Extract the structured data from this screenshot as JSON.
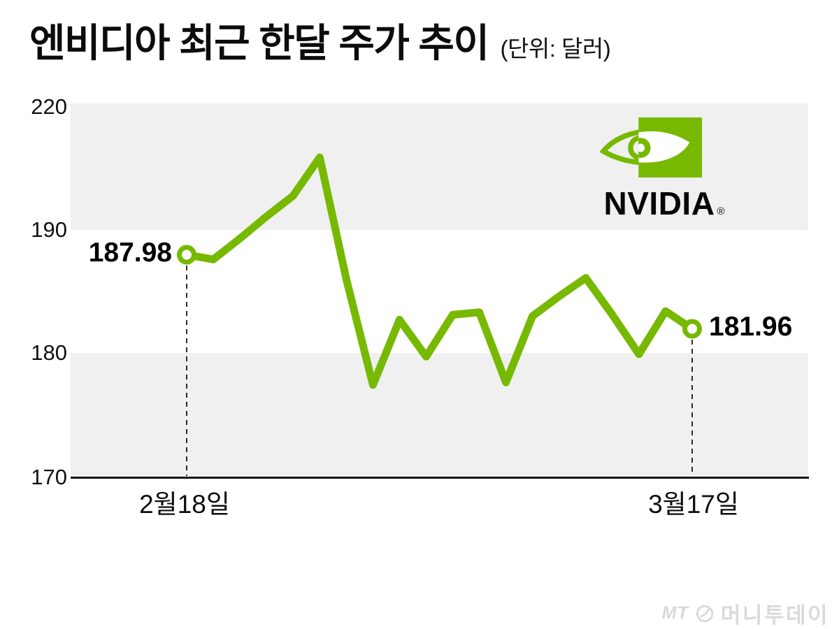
{
  "title": {
    "text": "엔비디아 최근 한달 주가 추이",
    "unit": "(단위: 달러)"
  },
  "chart_data": {
    "type": "line",
    "title": "엔비디아 최근 한달 주가 추이",
    "unit_label": "(단위: 달러)",
    "series": [
      {
        "name": "NVIDIA",
        "color": "#76b900",
        "values": [
          187.98,
          187.6,
          189.3,
          193.2,
          198.1,
          207.2,
          186.0,
          177.4,
          182.7,
          179.7,
          183.1,
          183.3,
          177.6,
          183.0,
          184.6,
          186.1,
          183.1,
          179.9,
          183.4,
          181.96
        ]
      }
    ],
    "x_tick_labels": [
      "2월18일",
      "3월17일"
    ],
    "y_tick_labels": [
      "220",
      "190",
      "180",
      "170"
    ],
    "ylim": [
      170,
      220
    ],
    "y_axis_note": "band between 190 and 220 is compressed (broken scale)",
    "grid": "alternating horizontal gray bands, no gridlines",
    "legend": "none",
    "start_label": "187.98",
    "end_label": "181.96"
  },
  "logo": {
    "brand": "NVIDIA",
    "reg": "®"
  },
  "watermark": {
    "mt": "MT",
    "name": "머니투데이"
  },
  "colors": {
    "accent": "#76b900",
    "band": "#f0f0f0",
    "axis": "#161616",
    "dashed": "#2b2b2b",
    "text": "#111111",
    "watermark": "#d8d8d8"
  }
}
